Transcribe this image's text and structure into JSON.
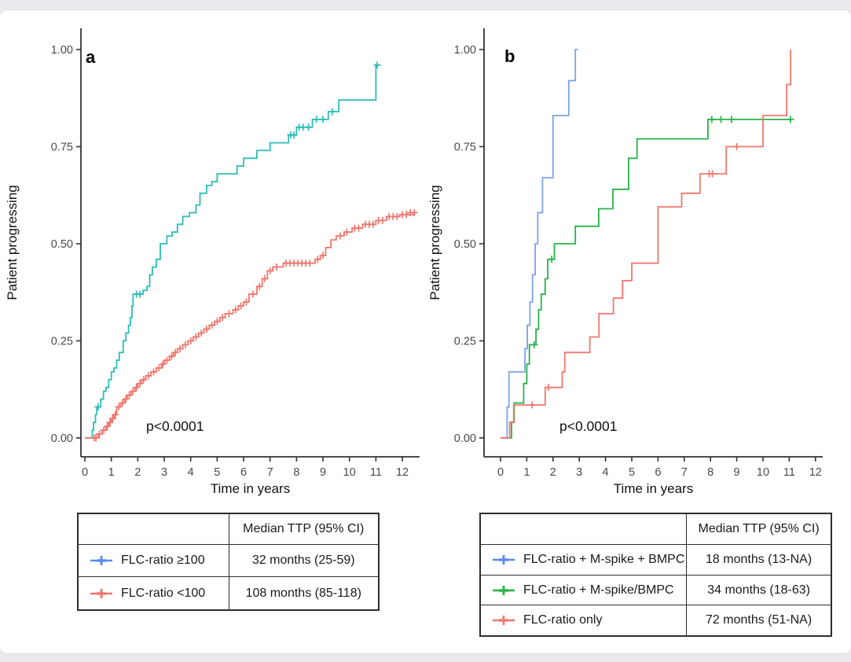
{
  "page": {
    "background_color": "#ffffff",
    "frame_strip_color": "#e9e9ee"
  },
  "chart_data": [
    {
      "type": "line",
      "step": true,
      "kind": "kaplan-meier-cumulative-incidence",
      "panel_label": "a",
      "xlabel": "Time in years",
      "ylabel": "Patient progressing",
      "annotation": "p<0.0001",
      "xlim": [
        0,
        12.5
      ],
      "ylim": [
        0,
        1
      ],
      "xticks": [
        0,
        1,
        2,
        3,
        4,
        5,
        6,
        7,
        8,
        9,
        10,
        11,
        12
      ],
      "yticks": [
        {
          "value": 0.0,
          "label": "0.00"
        },
        {
          "value": 0.25,
          "label": "0.25"
        },
        {
          "value": 0.5,
          "label": "0.50"
        },
        {
          "value": 0.75,
          "label": "0.75"
        },
        {
          "value": 1.0,
          "label": "1.00"
        }
      ],
      "grid": false,
      "legend_position": "table-below",
      "series": [
        {
          "name": "FLC-ratio ≥100",
          "color": "#2dbcb8",
          "steps": [
            [
              0,
              0
            ],
            [
              0.28,
              0.02
            ],
            [
              0.33,
              0.04
            ],
            [
              0.4,
              0.06
            ],
            [
              0.45,
              0.08
            ],
            [
              0.6,
              0.1
            ],
            [
              0.7,
              0.12
            ],
            [
              0.8,
              0.13
            ],
            [
              0.9,
              0.15
            ],
            [
              1.0,
              0.17
            ],
            [
              1.1,
              0.18
            ],
            [
              1.2,
              0.2
            ],
            [
              1.3,
              0.22
            ],
            [
              1.45,
              0.25
            ],
            [
              1.55,
              0.27
            ],
            [
              1.65,
              0.29
            ],
            [
              1.72,
              0.31
            ],
            [
              1.78,
              0.34
            ],
            [
              1.82,
              0.37
            ],
            [
              2.2,
              0.38
            ],
            [
              2.35,
              0.39
            ],
            [
              2.45,
              0.42
            ],
            [
              2.55,
              0.44
            ],
            [
              2.7,
              0.46
            ],
            [
              2.85,
              0.5
            ],
            [
              3.1,
              0.52
            ],
            [
              3.3,
              0.53
            ],
            [
              3.5,
              0.55
            ],
            [
              3.7,
              0.57
            ],
            [
              3.95,
              0.58
            ],
            [
              4.2,
              0.6
            ],
            [
              4.35,
              0.63
            ],
            [
              4.6,
              0.65
            ],
            [
              4.8,
              0.66
            ],
            [
              5.0,
              0.68
            ],
            [
              5.75,
              0.7
            ],
            [
              6.0,
              0.72
            ],
            [
              6.5,
              0.74
            ],
            [
              7.0,
              0.76
            ],
            [
              7.7,
              0.78
            ],
            [
              8.0,
              0.8
            ],
            [
              8.6,
              0.82
            ],
            [
              9.2,
              0.84
            ],
            [
              9.6,
              0.87
            ],
            [
              11.0,
              0.96
            ],
            [
              11.12,
              0.96
            ]
          ],
          "censors": [
            [
              0.5,
              0.08
            ],
            [
              1.95,
              0.37
            ],
            [
              2.08,
              0.37
            ],
            [
              7.78,
              0.78
            ],
            [
              7.9,
              0.78
            ],
            [
              8.1,
              0.8
            ],
            [
              8.25,
              0.8
            ],
            [
              8.45,
              0.8
            ],
            [
              8.75,
              0.82
            ],
            [
              9.0,
              0.82
            ],
            [
              9.35,
              0.84
            ],
            [
              11.05,
              0.96
            ]
          ]
        },
        {
          "name": "FLC-ratio <100",
          "color": "#f0776e",
          "steps": [
            [
              0,
              0
            ],
            [
              0.5,
              0.01
            ],
            [
              0.65,
              0.02
            ],
            [
              0.8,
              0.03
            ],
            [
              0.9,
              0.04
            ],
            [
              1.0,
              0.05
            ],
            [
              1.1,
              0.06
            ],
            [
              1.2,
              0.08
            ],
            [
              1.35,
              0.09
            ],
            [
              1.5,
              0.1
            ],
            [
              1.6,
              0.11
            ],
            [
              1.75,
              0.12
            ],
            [
              1.9,
              0.13
            ],
            [
              2.0,
              0.14
            ],
            [
              2.15,
              0.15
            ],
            [
              2.3,
              0.16
            ],
            [
              2.5,
              0.17
            ],
            [
              2.7,
              0.18
            ],
            [
              2.9,
              0.19
            ],
            [
              3.0,
              0.2
            ],
            [
              3.2,
              0.21
            ],
            [
              3.35,
              0.22
            ],
            [
              3.5,
              0.23
            ],
            [
              3.7,
              0.24
            ],
            [
              3.9,
              0.25
            ],
            [
              4.1,
              0.26
            ],
            [
              4.3,
              0.27
            ],
            [
              4.5,
              0.28
            ],
            [
              4.7,
              0.29
            ],
            [
              4.9,
              0.3
            ],
            [
              5.1,
              0.31
            ],
            [
              5.3,
              0.32
            ],
            [
              5.6,
              0.33
            ],
            [
              5.8,
              0.34
            ],
            [
              6.0,
              0.35
            ],
            [
              6.2,
              0.37
            ],
            [
              6.5,
              0.39
            ],
            [
              6.7,
              0.41
            ],
            [
              6.9,
              0.43
            ],
            [
              7.1,
              0.44
            ],
            [
              7.5,
              0.45
            ],
            [
              8.7,
              0.46
            ],
            [
              8.9,
              0.47
            ],
            [
              9.1,
              0.49
            ],
            [
              9.3,
              0.51
            ],
            [
              9.5,
              0.52
            ],
            [
              9.8,
              0.53
            ],
            [
              10.1,
              0.54
            ],
            [
              10.5,
              0.55
            ],
            [
              11.0,
              0.56
            ],
            [
              11.4,
              0.57
            ],
            [
              11.9,
              0.575
            ],
            [
              12.45,
              0.58
            ]
          ],
          "censors": [
            [
              0.35,
              0
            ],
            [
              0.42,
              0
            ],
            [
              0.55,
              0.01
            ],
            [
              0.72,
              0.02
            ],
            [
              0.85,
              0.03
            ],
            [
              0.95,
              0.04
            ],
            [
              1.05,
              0.05
            ],
            [
              1.15,
              0.06
            ],
            [
              1.28,
              0.08
            ],
            [
              1.42,
              0.09
            ],
            [
              1.55,
              0.1
            ],
            [
              1.68,
              0.11
            ],
            [
              1.82,
              0.12
            ],
            [
              1.95,
              0.13
            ],
            [
              2.08,
              0.14
            ],
            [
              2.22,
              0.15
            ],
            [
              2.4,
              0.16
            ],
            [
              2.6,
              0.17
            ],
            [
              2.8,
              0.18
            ],
            [
              2.95,
              0.19
            ],
            [
              3.1,
              0.2
            ],
            [
              3.28,
              0.21
            ],
            [
              3.42,
              0.22
            ],
            [
              3.6,
              0.23
            ],
            [
              3.8,
              0.24
            ],
            [
              4.0,
              0.25
            ],
            [
              4.2,
              0.26
            ],
            [
              4.4,
              0.27
            ],
            [
              4.6,
              0.28
            ],
            [
              4.8,
              0.29
            ],
            [
              5.0,
              0.3
            ],
            [
              5.2,
              0.31
            ],
            [
              5.45,
              0.32
            ],
            [
              5.7,
              0.33
            ],
            [
              5.9,
              0.34
            ],
            [
              6.1,
              0.35
            ],
            [
              6.35,
              0.37
            ],
            [
              6.6,
              0.39
            ],
            [
              6.8,
              0.41
            ],
            [
              7.0,
              0.43
            ],
            [
              7.25,
              0.44
            ],
            [
              7.6,
              0.45
            ],
            [
              7.75,
              0.45
            ],
            [
              7.9,
              0.45
            ],
            [
              8.05,
              0.45
            ],
            [
              8.2,
              0.45
            ],
            [
              8.35,
              0.45
            ],
            [
              8.5,
              0.45
            ],
            [
              8.8,
              0.46
            ],
            [
              9.0,
              0.47
            ],
            [
              9.65,
              0.52
            ],
            [
              9.9,
              0.53
            ],
            [
              10.2,
              0.54
            ],
            [
              10.35,
              0.54
            ],
            [
              10.6,
              0.55
            ],
            [
              10.75,
              0.55
            ],
            [
              10.9,
              0.55
            ],
            [
              11.1,
              0.56
            ],
            [
              11.25,
              0.56
            ],
            [
              11.5,
              0.57
            ],
            [
              11.65,
              0.57
            ],
            [
              11.8,
              0.57
            ],
            [
              12.0,
              0.575
            ],
            [
              12.15,
              0.575
            ],
            [
              12.3,
              0.58
            ],
            [
              12.45,
              0.58
            ]
          ]
        }
      ]
    },
    {
      "type": "line",
      "step": true,
      "kind": "kaplan-meier-cumulative-incidence",
      "panel_label": "b",
      "xlabel": "Time in years",
      "ylabel": "Patient progressing",
      "annotation": "p<0.0001",
      "xlim": [
        0,
        12.5
      ],
      "ylim": [
        0,
        1
      ],
      "xticks": [
        0,
        1,
        2,
        3,
        4,
        5,
        6,
        7,
        8,
        9,
        10,
        11,
        12
      ],
      "yticks": [
        {
          "value": 0.0,
          "label": "0.00"
        },
        {
          "value": 0.25,
          "label": "0.25"
        },
        {
          "value": 0.5,
          "label": "0.50"
        },
        {
          "value": 0.75,
          "label": "0.75"
        },
        {
          "value": 1.0,
          "label": "1.00"
        }
      ],
      "grid": false,
      "legend_position": "table-below",
      "series": [
        {
          "name": "FLC-ratio + M-spike + BMPC",
          "color": "#7ca3e9",
          "steps": [
            [
              0,
              0
            ],
            [
              0.25,
              0.08
            ],
            [
              0.32,
              0.17
            ],
            [
              0.93,
              0.23
            ],
            [
              1.02,
              0.29
            ],
            [
              1.12,
              0.35
            ],
            [
              1.22,
              0.42
            ],
            [
              1.32,
              0.5
            ],
            [
              1.42,
              0.58
            ],
            [
              1.6,
              0.67
            ],
            [
              2.0,
              0.83
            ],
            [
              2.6,
              0.92
            ],
            [
              2.85,
              1.0
            ],
            [
              2.95,
              1.0
            ]
          ],
          "censors": []
        },
        {
          "name": "FLC-ratio + M-spike/BMPC",
          "color": "#26b34a",
          "steps": [
            [
              0,
              0
            ],
            [
              0.42,
              0.04
            ],
            [
              0.52,
              0.09
            ],
            [
              0.88,
              0.14
            ],
            [
              1.0,
              0.19
            ],
            [
              1.1,
              0.24
            ],
            [
              1.35,
              0.28
            ],
            [
              1.45,
              0.33
            ],
            [
              1.55,
              0.37
            ],
            [
              1.7,
              0.41
            ],
            [
              1.8,
              0.46
            ],
            [
              2.05,
              0.5
            ],
            [
              2.85,
              0.545
            ],
            [
              3.74,
              0.59
            ],
            [
              4.28,
              0.64
            ],
            [
              4.88,
              0.72
            ],
            [
              5.2,
              0.77
            ],
            [
              7.9,
              0.82
            ],
            [
              11.1,
              0.82
            ]
          ],
          "censors": [
            [
              1.28,
              0.24
            ],
            [
              1.95,
              0.46
            ],
            [
              8.05,
              0.82
            ],
            [
              8.4,
              0.82
            ],
            [
              8.8,
              0.82
            ],
            [
              11.05,
              0.82
            ]
          ]
        },
        {
          "name": "FLC-ratio only",
          "color": "#f0776e",
          "steps": [
            [
              0,
              0
            ],
            [
              0.35,
              0.04
            ],
            [
              0.5,
              0.085
            ],
            [
              1.7,
              0.13
            ],
            [
              2.35,
              0.17
            ],
            [
              2.45,
              0.22
            ],
            [
              3.4,
              0.26
            ],
            [
              3.75,
              0.32
            ],
            [
              4.3,
              0.36
            ],
            [
              4.65,
              0.405
            ],
            [
              5.0,
              0.45
            ],
            [
              6.0,
              0.595
            ],
            [
              6.9,
              0.63
            ],
            [
              7.6,
              0.68
            ],
            [
              8.6,
              0.75
            ],
            [
              10.0,
              0.83
            ],
            [
              10.9,
              0.91
            ],
            [
              11.05,
              1.0
            ]
          ],
          "censors": [
            [
              1.2,
              0.085
            ],
            [
              1.82,
              0.13
            ],
            [
              7.95,
              0.68
            ],
            [
              8.07,
              0.68
            ],
            [
              9.0,
              0.75
            ]
          ]
        }
      ]
    }
  ],
  "tables": [
    {
      "header": [
        "",
        "Median TTP (95% CI)"
      ],
      "rows": [
        {
          "key_color": "#5a8bea",
          "label": "FLC-ratio ≥100",
          "value": "32 months (25-59)"
        },
        {
          "key_color": "#f0776e",
          "label": "FLC-ratio <100",
          "value": "108 months (85-118)"
        }
      ]
    },
    {
      "header": [
        "",
        "Median TTP (95% CI)"
      ],
      "rows": [
        {
          "key_color": "#5a8bea",
          "label": "FLC-ratio + M-spike + BMPC",
          "value": "18 months (13-NA)"
        },
        {
          "key_color": "#26b34a",
          "label": "FLC-ratio + M-spike/BMPC",
          "value": "34 months (18-63)"
        },
        {
          "key_color": "#f0776e",
          "label": "FLC-ratio only",
          "value": "72 months (51-NA)"
        }
      ]
    }
  ]
}
